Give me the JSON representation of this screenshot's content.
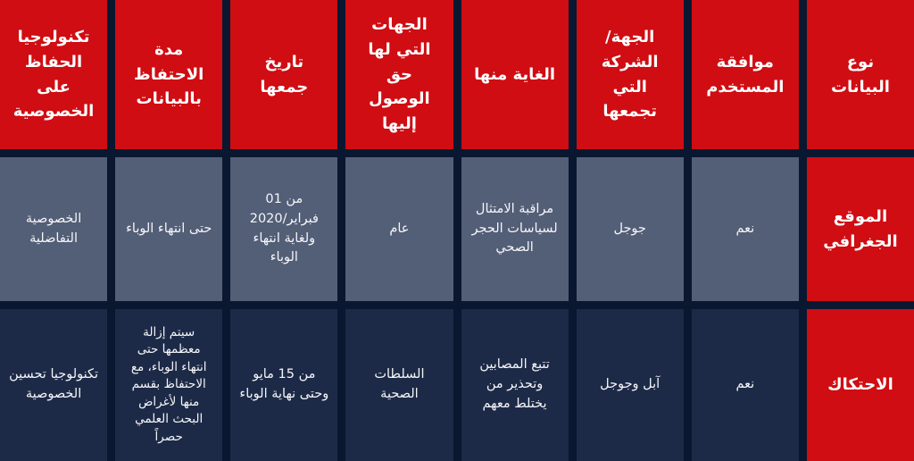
{
  "colors": {
    "header_red": "#cf0d13",
    "row_location_cell": "#535e77",
    "row_contact_cell": "#1d2a47",
    "grid_background": "#0a1730",
    "text": "#ffffff"
  },
  "chart_data": {
    "type": "table",
    "direction": "rtl",
    "columns": [
      "نوع البيانات",
      "موافقة المستخدم",
      "الجهة/ الشركة التي تجمعها",
      "الغاية منها",
      "الجهات التي لها حق الوصول إليها",
      "تاريخ جمعها",
      "مدة الاحتفاظ بالبيانات",
      "تكنولوجيا الحفاظ على الخصوصية"
    ],
    "rows": [
      {
        "data_type": "الموقع الجغرافي",
        "cells": [
          "نعم",
          "جوجل",
          "مراقبة الامتثال لسياسات الحجر الصحي",
          "عام",
          "من 01 فبراير/2020 ولغاية انتهاء الوباء",
          "حتى انتهاء الوباء",
          "الخصوصية التفاضلية"
        ]
      },
      {
        "data_type": "الاحتكاك",
        "cells": [
          "نعم",
          "آبل وجوجل",
          "تتبع المصابين وتحذير من يختلط معهم",
          "السلطات الصحية",
          "من 15 مايو وحتى نهاية الوباء",
          "سيتم إزالة معظمها حتى انتهاء الوباء، مع الاحتفاظ بقسم منها لأغراض البحث العلمي حصراً",
          "تكنولوجيا تحسين الخصوصية"
        ]
      }
    ]
  }
}
